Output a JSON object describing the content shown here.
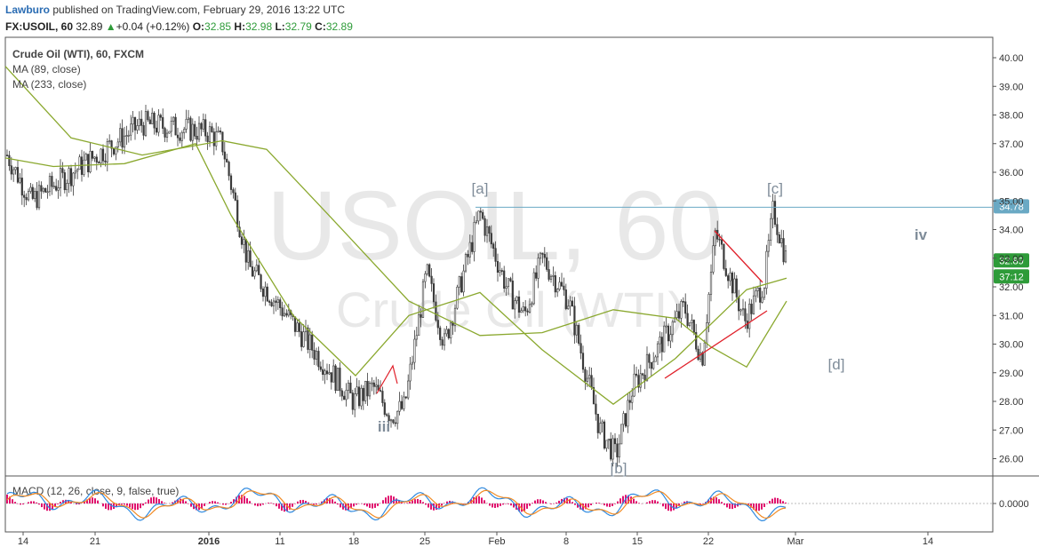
{
  "header": {
    "author": "Lawburo",
    "published_text": "published on TradingView.com, February 29, 2016 13:22 UTC",
    "symbol": "FX:USOIL, 60",
    "last": "32.89",
    "change": "+0.04 (+0.12%)",
    "o_label": "O:",
    "o_value": "32.85",
    "h_label": "H:",
    "h_value": "32.98",
    "l_label": "L:",
    "l_value": "32.79",
    "c_label": "C:",
    "c_value": "32.89"
  },
  "legend": {
    "title": "Crude Oil (WTI), 60, FXCM",
    "ma1": "MA (89, close)",
    "ma2": "MA (233, close)"
  },
  "watermark": {
    "line1": "USOIL, 60",
    "line2": "Crude Oil (WTI)"
  },
  "macd_label": "MACD (12, 26, close, 9, false, true)",
  "price_badges": {
    "level": "34.78",
    "last": "32.89",
    "countdown": "37:12"
  },
  "colors": {
    "up": "#2e9b39",
    "candle": "#3a3a3a",
    "ma": "#8aa82e",
    "trendline": "#e0202a",
    "hline": "#6aa9c4",
    "macd": "#2f8ae0",
    "signal": "#f08a24",
    "histogram": "#e0116e",
    "label": "#7f8c99"
  },
  "chart_data": {
    "type": "line",
    "ylim": [
      25.5,
      40.4
    ],
    "y_ticks": [
      "40.00",
      "39.00",
      "38.00",
      "37.00",
      "36.00",
      "35.00",
      "34.00",
      "33.00",
      "32.00",
      "31.00",
      "30.00",
      "29.00",
      "28.00",
      "27.00",
      "26.00"
    ],
    "x_ticks": [
      "14",
      "21",
      "2016",
      "11",
      "18",
      "25",
      "Feb",
      "8",
      "15",
      "22",
      "Mar",
      "14"
    ],
    "horizontal_level": 34.78,
    "macd_axis_label": "0.0000",
    "wave_labels": [
      "[a]",
      "[c]",
      "iv",
      "[d]",
      "iii",
      "[b]"
    ],
    "price_path": [
      [
        "14",
        36.6
      ],
      [
        "21",
        35.0
      ],
      [
        "Dec 28",
        37.7
      ],
      [
        "2016",
        37.4
      ],
      [
        "2016",
        37.0
      ],
      [
        "11",
        32.7
      ],
      [
        "18",
        28.0
      ],
      [
        "19",
        28.5
      ],
      [
        "20",
        27.5
      ],
      [
        "21",
        27.8
      ],
      [
        "25",
        32.5
      ],
      [
        "28",
        30.0
      ],
      [
        "29",
        34.6
      ],
      [
        "Feb",
        32.0
      ],
      [
        "3",
        31.0
      ],
      [
        "4",
        33.0
      ],
      [
        "8",
        31.5
      ],
      [
        "11",
        27.0
      ],
      [
        "12",
        26.1
      ],
      [
        "15",
        28.5
      ],
      [
        "17",
        31.3
      ],
      [
        "18",
        29.5
      ],
      [
        "22",
        33.9
      ],
      [
        "24",
        30.8
      ],
      [
        "25",
        32.2
      ],
      [
        "26",
        34.7
      ],
      [
        "29",
        32.89
      ]
    ],
    "series": [
      {
        "name": "MA (89, close)",
        "values": [
          36.5,
          36.2,
          36.3,
          37.0,
          34.5,
          31.0,
          28.9,
          31.0,
          31.8,
          29.8,
          27.9,
          29.5,
          31.9,
          32.3
        ]
      },
      {
        "name": "MA (233, close)",
        "values": [
          39.7,
          37.2,
          36.6,
          37.1,
          36.8,
          34.5,
          31.5,
          30.3,
          30.4,
          31.2,
          30.9,
          29.9,
          29.2,
          31.5
        ]
      }
    ]
  }
}
